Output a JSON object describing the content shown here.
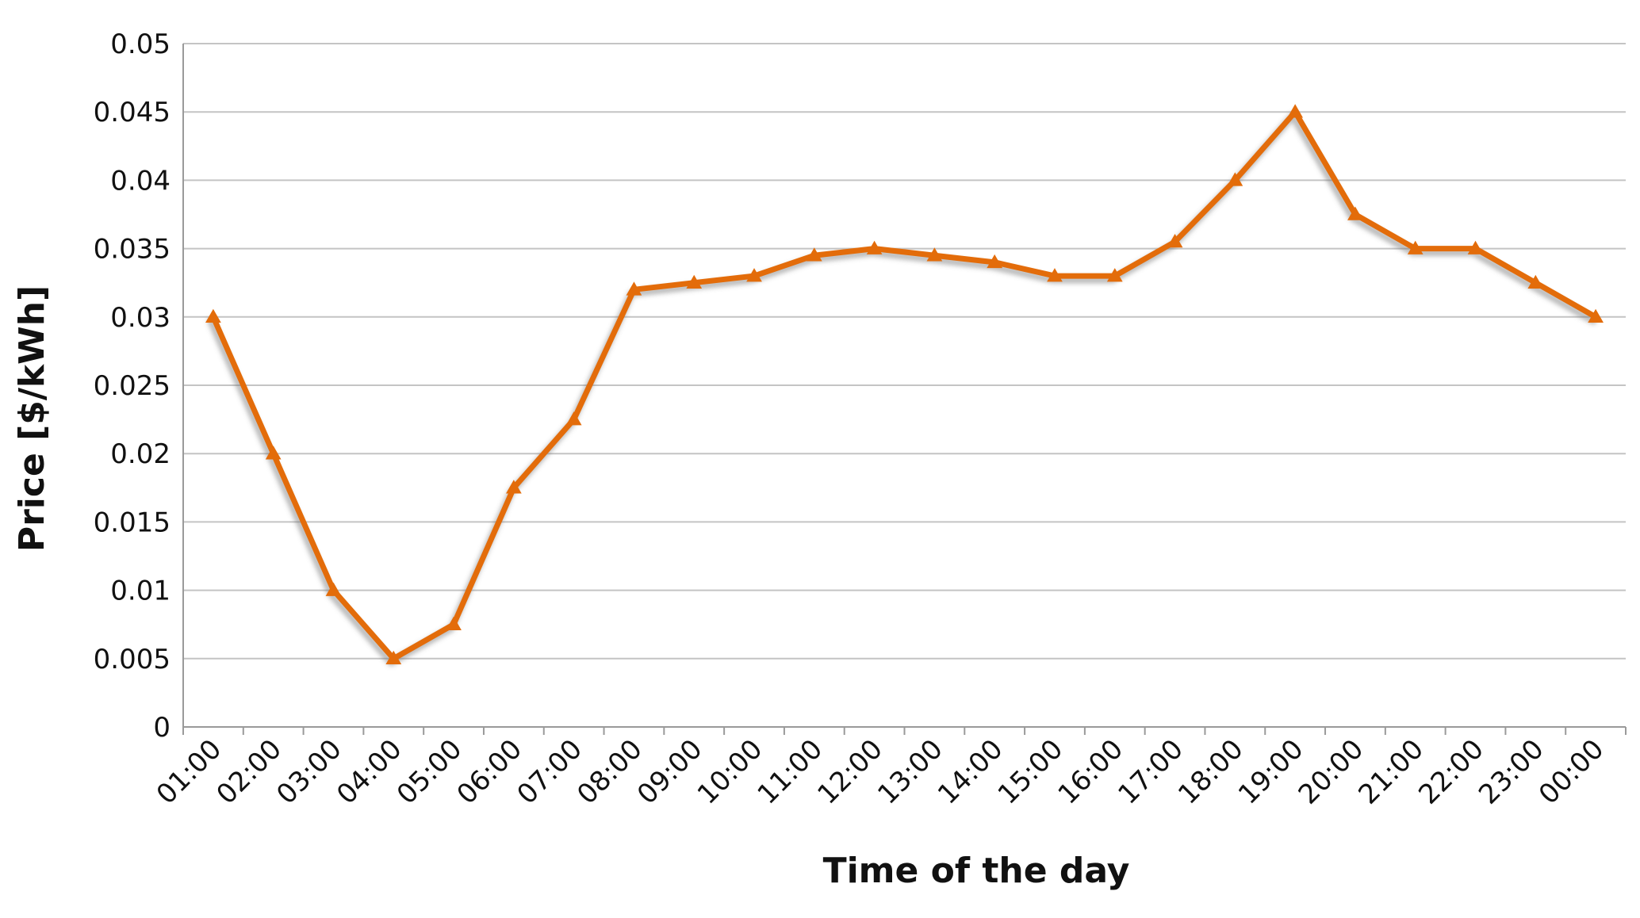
{
  "chart_data": {
    "type": "line",
    "title": "",
    "xlabel": "Time of the day",
    "ylabel": "Price [$/kWh]",
    "ylim": [
      0,
      0.05
    ],
    "yticks": [
      "0",
      "0.005",
      "0.01",
      "0.015",
      "0.02",
      "0.025",
      "0.03",
      "0.035",
      "0.04",
      "0.045",
      "0.05"
    ],
    "ytick_values": [
      0,
      0.005,
      0.01,
      0.015,
      0.02,
      0.025,
      0.03,
      0.035,
      0.04,
      0.045,
      0.05
    ],
    "categories": [
      "01:00",
      "02:00",
      "03:00",
      "04:00",
      "05:00",
      "06:00",
      "07:00",
      "08:00",
      "09:00",
      "10:00",
      "11:00",
      "12:00",
      "13:00",
      "14:00",
      "15:00",
      "16:00",
      "17:00",
      "18:00",
      "19:00",
      "20:00",
      "21:00",
      "22:00",
      "23:00",
      "00:00"
    ],
    "series": [
      {
        "values": [
          0.03,
          0.02,
          0.01,
          0.005,
          0.0075,
          0.0175,
          0.0225,
          0.032,
          0.0325,
          0.033,
          0.0345,
          0.035,
          0.0345,
          0.034,
          0.033,
          0.033,
          0.0355,
          0.04,
          0.045,
          0.0375,
          0.035,
          0.035,
          0.0325,
          0.03
        ],
        "color": "#e36c0a",
        "marker": "triangle"
      }
    ],
    "grid": true,
    "legend": "none"
  }
}
